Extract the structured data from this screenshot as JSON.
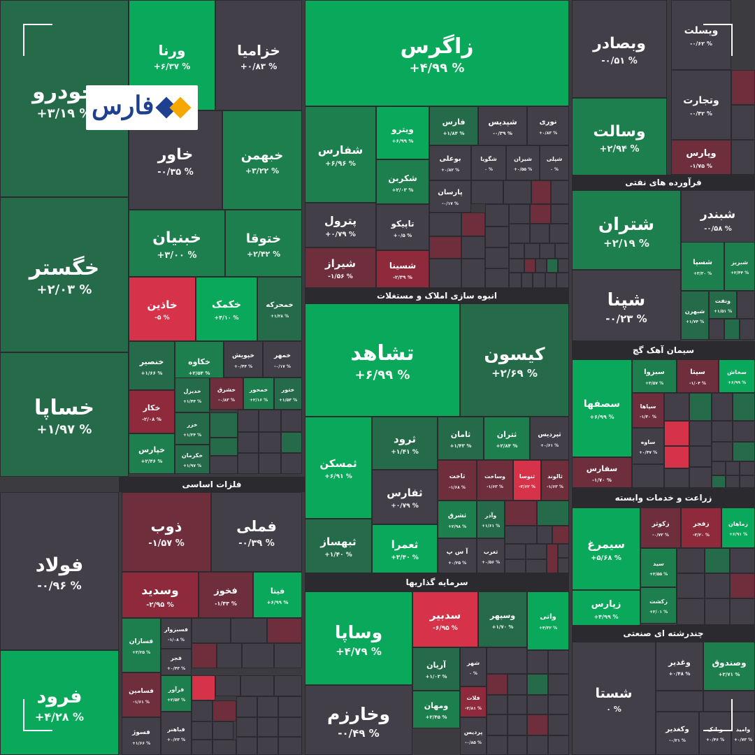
{
  "brand": {
    "logo_text": "فارس",
    "logo_colors": [
      "#f7a800",
      "#1f3f8f"
    ]
  },
  "corner_tag": "ویسلت",
  "colors": {
    "strong_green": "#0aa85a",
    "green": "#1e7f4e",
    "dark_green": "#256b4a",
    "neutral": "#433f48",
    "dark_red": "#6e2e3c",
    "red": "#8e2a3b",
    "bright_red": "#d6334a"
  },
  "chart_data": {
    "type": "treemap",
    "sectors": [
      {
        "name": "فلزات اساسی"
      },
      {
        "name": "انبوه سازی املاک و مستغلات"
      },
      {
        "name": "سرمایه گذاریها"
      },
      {
        "name": "فرآورده های نفتی"
      },
      {
        "name": "سیمان آهک گچ"
      },
      {
        "name": "زراعت و خدمات وابسته"
      },
      {
        "name": "چندرشته ای صنعتی"
      }
    ],
    "stocks": [
      {
        "name": "خودرو",
        "change": "+۳/۱۹ %",
        "color": "dark_green"
      },
      {
        "name": "خگستر",
        "change": "+۲/۰۳ %",
        "color": "dark_green"
      },
      {
        "name": "خساپا",
        "change": "+۱/۹۷ %",
        "color": "dark_green"
      },
      {
        "name": "ورنا",
        "change": "+۶/۳۷ %",
        "color": "strong_green"
      },
      {
        "name": "خزامیا",
        "change": "+۰/۸۳ %",
        "color": "neutral"
      },
      {
        "name": "خاور",
        "change": "-۰/۳۵ %",
        "color": "neutral"
      },
      {
        "name": "خبهمن",
        "change": "+۳/۲۲ %",
        "color": "green"
      },
      {
        "name": "خبنیان",
        "change": "+۳/۰۰ %",
        "color": "green"
      },
      {
        "name": "ختوقا",
        "change": "+۲/۴۲ %",
        "color": "green"
      },
      {
        "name": "خاذین",
        "change": "-۵ %",
        "color": "bright_red"
      },
      {
        "name": "خکمک",
        "change": "+۴/۱۰ %",
        "color": "strong_green"
      },
      {
        "name": "خمحرکه",
        "change": "+۱/۲۸ %",
        "color": "dark_green"
      },
      {
        "name": "خنصیر",
        "change": "+۱/۶۶ %",
        "color": "dark_green"
      },
      {
        "name": "خکاوه",
        "change": "+۲/۵۴ %",
        "color": "green"
      },
      {
        "name": "خپویش",
        "change": "+۰/۴۴ %",
        "color": "neutral"
      },
      {
        "name": "خمهر",
        "change": "-۰/۱۷ %",
        "color": "neutral"
      },
      {
        "name": "خکار",
        "change": "-۲/۰۸ %",
        "color": "red"
      },
      {
        "name": "خدیزل",
        "change": "+۱/۴۴ %",
        "color": "dark_green"
      },
      {
        "name": "خشرق",
        "change": "-۰/۸۳ %",
        "color": "dark_red"
      },
      {
        "name": "خمحور",
        "change": "+۲/۱۶ %",
        "color": "green"
      },
      {
        "name": "ختور",
        "change": "+۱/۵۳ %",
        "color": "dark_green"
      },
      {
        "name": "خزر",
        "change": "+۱/۳۴ %",
        "color": "dark_green"
      },
      {
        "name": "خپارس",
        "change": "+۲/۴۶ %",
        "color": "green"
      },
      {
        "name": "خکرمان",
        "change": "+۱/۹۷ %",
        "color": "dark_green"
      },
      {
        "name": "زاگرس",
        "change": "+۴/۹۹ %",
        "color": "strong_green"
      },
      {
        "name": "شفارس",
        "change": "+۶/۹۶ %",
        "color": "green"
      },
      {
        "name": "ویترو",
        "change": "+۶/۹۹ %",
        "color": "strong_green"
      },
      {
        "name": "فارس",
        "change": "+۱/۸۴ %",
        "color": "dark_green"
      },
      {
        "name": "شپدیس",
        "change": "-۰/۳۹ %",
        "color": "neutral"
      },
      {
        "name": "نوری",
        "change": "+۰/۸۳ %",
        "color": "neutral"
      },
      {
        "name": "بوعلی",
        "change": "+۰/۸۲ %",
        "color": "neutral"
      },
      {
        "name": "شگویا",
        "change": "۰ %",
        "color": "neutral"
      },
      {
        "name": "شیران",
        "change": "+۰/۵۵ %",
        "color": "neutral"
      },
      {
        "name": "شپلی",
        "change": "۰ %",
        "color": "neutral"
      },
      {
        "name": "شکربن",
        "change": "+۲/۰۳ %",
        "color": "green"
      },
      {
        "name": "پارسان",
        "change": "-۰/۱۷ %",
        "color": "neutral"
      },
      {
        "name": "پترول",
        "change": "+۰/۷۹ %",
        "color": "neutral"
      },
      {
        "name": "تاپیکو",
        "change": "+۰/۵ %",
        "color": "neutral"
      },
      {
        "name": "شیراز",
        "change": "-۱/۵۶ %",
        "color": "dark_red"
      },
      {
        "name": "شسینا",
        "change": "-۲/۳۹ %",
        "color": "red"
      },
      {
        "name": "تشاهد",
        "change": "+۶/۹۹ %",
        "color": "strong_green"
      },
      {
        "name": "کیسون",
        "change": "+۲/۶۹ %",
        "color": "dark_green"
      },
      {
        "name": "ثمسکن",
        "change": "+۶/۹۱ %",
        "color": "strong_green"
      },
      {
        "name": "ثرود",
        "change": "+۱/۴۱ %",
        "color": "dark_green"
      },
      {
        "name": "ثامان",
        "change": "+۱/۴۳ %",
        "color": "dark_green"
      },
      {
        "name": "ثتران",
        "change": "+۲/۸۴ %",
        "color": "green"
      },
      {
        "name": "ثپردیس",
        "change": "+۰/۶۱ %",
        "color": "neutral"
      },
      {
        "name": "ثاخت",
        "change": "-۱/۶۸ %",
        "color": "dark_red"
      },
      {
        "name": "وساخت",
        "change": "-۱/۶۳ %",
        "color": "dark_red"
      },
      {
        "name": "ثنوسا",
        "change": "-۳/۶۲ %",
        "color": "bright_red"
      },
      {
        "name": "ثالوند",
        "change": "-۱/۶۳ %",
        "color": "dark_red"
      },
      {
        "name": "ثفارس",
        "change": "+۰/۷۹ %",
        "color": "neutral"
      },
      {
        "name": "ثشرق",
        "change": "+۲/۹۸ %",
        "color": "green"
      },
      {
        "name": "وآذر",
        "change": "+۱/۶۱ %",
        "color": "dark_green"
      },
      {
        "name": "ثبهساز",
        "change": "+۱/۴۰ %",
        "color": "dark_green"
      },
      {
        "name": "ثعمرا",
        "change": "+۳/۴۰ %",
        "color": "strong_green"
      },
      {
        "name": "آ س پ",
        "change": "+۰/۲۵ %",
        "color": "neutral"
      },
      {
        "name": "ثغرب",
        "change": "+۰/۵۶ %",
        "color": "neutral"
      },
      {
        "name": "وسالت",
        "change": "+۲/۹۴ %",
        "color": "green"
      },
      {
        "name": "وبصادر",
        "change": "-۰/۵۱ %",
        "color": "neutral"
      },
      {
        "name": "وتجارت",
        "change": "-۰/۴۲ %",
        "color": "neutral"
      },
      {
        "name": "وپارس",
        "change": "-۱/۷۵ %",
        "color": "dark_red"
      },
      {
        "name": "ویسلت",
        "change": "-۰/۶۲ %",
        "color": "neutral"
      },
      {
        "name": "شتران",
        "change": "+۲/۱۹ %",
        "color": "green"
      },
      {
        "name": "شبندر",
        "change": "-۰/۵۸ %",
        "color": "neutral"
      },
      {
        "name": "شپنا",
        "change": "-۰/۲۳ %",
        "color": "neutral"
      },
      {
        "name": "شسپا",
        "change": "+۳/۳۰ %",
        "color": "green"
      },
      {
        "name": "شبریز",
        "change": "+۲/۴۴ %",
        "color": "green"
      },
      {
        "name": "شبهرن",
        "change": "+۱/۷۴ %",
        "color": "dark_green"
      },
      {
        "name": "ونفت",
        "change": "+۱/۵۱ %",
        "color": "dark_green"
      },
      {
        "name": "سصفها",
        "change": "+۶/۹۹ %",
        "color": "strong_green"
      },
      {
        "name": "سبزوا",
        "change": "+۳/۵۷ %",
        "color": "green"
      },
      {
        "name": "سیتا",
        "change": "-۱/۰۴ %",
        "color": "dark_red"
      },
      {
        "name": "سخاش",
        "change": "+۶/۹۹ %",
        "color": "strong_green"
      },
      {
        "name": "سپاها",
        "change": "-۱/۳۰ %",
        "color": "dark_red"
      },
      {
        "name": "ساوه",
        "change": "+۰/۴۷ %",
        "color": "neutral"
      },
      {
        "name": "سفارس",
        "change": "-۱/۷۰ %",
        "color": "dark_red"
      },
      {
        "name": "سیمرغ",
        "change": "+۵/۶۸ %",
        "color": "strong_green"
      },
      {
        "name": "زکوثر",
        "change": "-۰/۷۳ %",
        "color": "dark_red"
      },
      {
        "name": "زفجر",
        "change": "-۳/۲۰ %",
        "color": "red"
      },
      {
        "name": "زماهان",
        "change": "+۶/۹۱ %",
        "color": "strong_green"
      },
      {
        "name": "سید",
        "change": "+۲/۵۵ %",
        "color": "green"
      },
      {
        "name": "زپارس",
        "change": "+۴/۹۹ %",
        "color": "strong_green"
      },
      {
        "name": "زکشت",
        "change": "+۲/۰۱ %",
        "color": "green"
      },
      {
        "name": "شستا",
        "change": "۰ %",
        "color": "neutral"
      },
      {
        "name": "وغدیر",
        "change": "+۰/۴۸ %",
        "color": "neutral"
      },
      {
        "name": "وصندوق",
        "change": "+۳/۷۱ %",
        "color": "green"
      },
      {
        "name": "وکغدیر",
        "change": "-۰/۲۱ %",
        "color": "neutral"
      },
      {
        "name": "وبانک",
        "change": "+۰/۴۶ %",
        "color": "neutral"
      },
      {
        "name": "وامید",
        "change": "+۰/۷۳ %",
        "color": "neutral"
      },
      {
        "name": "وساپا",
        "change": "+۴/۷۹ %",
        "color": "strong_green"
      },
      {
        "name": "سدبیر",
        "change": "-۶/۹۵ %",
        "color": "bright_red"
      },
      {
        "name": "وسپهر",
        "change": "+۱/۷۰ %",
        "color": "dark_green"
      },
      {
        "name": "واتی",
        "change": "+۴/۳۲ %",
        "color": "strong_green"
      },
      {
        "name": "آریان",
        "change": "+۱/۰۳ %",
        "color": "dark_green"
      },
      {
        "name": "شهر",
        "change": "۰ %",
        "color": "neutral"
      },
      {
        "name": "وخارزم",
        "change": "-۰/۴۹ %",
        "color": "neutral"
      },
      {
        "name": "ومهان",
        "change": "+۲/۴۵ %",
        "color": "green"
      },
      {
        "name": "فلات",
        "change": "-۲/۸۱ %",
        "color": "red"
      },
      {
        "name": "پردیس",
        "change": "-۰/۸۵ %",
        "color": "neutral"
      },
      {
        "name": "فولاد",
        "change": "-۰/۹۶ %",
        "color": "neutral"
      },
      {
        "name": "فرود",
        "change": "+۴/۲۸ %",
        "color": "strong_green"
      },
      {
        "name": "ذوب",
        "change": "-۱/۵۷ %",
        "color": "dark_red"
      },
      {
        "name": "فملی",
        "change": "-۰/۳۹ %",
        "color": "neutral"
      },
      {
        "name": "وسدید",
        "change": "-۲/۹۵ %",
        "color": "red"
      },
      {
        "name": "فخوز",
        "change": "-۱/۴۳ %",
        "color": "dark_red"
      },
      {
        "name": "فیتا",
        "change": "+۶/۹۹ %",
        "color": "strong_green"
      },
      {
        "name": "فسازان",
        "change": "+۳/۲۵ %",
        "color": "green"
      },
      {
        "name": "فسبزوار",
        "change": "-۱/۰۸ %",
        "color": "neutral"
      },
      {
        "name": "فجر",
        "change": "+۰/۴۳ %",
        "color": "neutral"
      },
      {
        "name": "فسامین",
        "change": "-۱/۶۱ %",
        "color": "dark_red"
      },
      {
        "name": "فرآور",
        "change": "+۲/۵۳ %",
        "color": "green"
      },
      {
        "name": "فباهنر",
        "change": "+۰/۲۳ %",
        "color": "neutral"
      },
      {
        "name": "فسوژ",
        "change": "+۱/۶۶ %",
        "color": "neutral"
      }
    ]
  }
}
